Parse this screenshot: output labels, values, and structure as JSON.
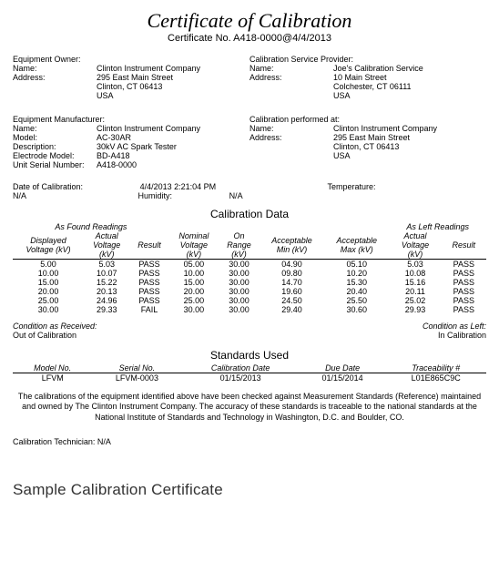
{
  "title": "Certificate of Calibration",
  "cert_label": "Certificate No.",
  "cert_no": "A418-0000@4/4/2013",
  "owner": {
    "heading": "Equipment Owner:",
    "name_label": "Name:",
    "name": "Clinton Instrument Company",
    "addr_label": "Address:",
    "addr1": "295 East Main Street",
    "addr2": "Clinton, CT 06413",
    "addr3": "USA"
  },
  "provider": {
    "heading": "Calibration Service Provider:",
    "name_label": "Name:",
    "name": "Joe's Calibration Service",
    "addr_label": "Address:",
    "addr1": "10 Main Street",
    "addr2": "Colchester, CT 06111",
    "addr3": "USA"
  },
  "manufacturer": {
    "heading": "Equipment Manufacturer:",
    "name_label": "Name:",
    "name": "Clinton Instrument Company",
    "model_label": "Model:",
    "model": "AC-30AR",
    "desc_label": "Description:",
    "desc": "30kV AC Spark Tester",
    "elec_label": "Electrode Model:",
    "elec": "BD-A418",
    "serial_label": "Unit Serial Number:",
    "serial": "A418-0000"
  },
  "performed": {
    "heading": "Calibration performed at:",
    "name_label": "Name:",
    "name": "Clinton Instrument Company",
    "addr_label": "Address:",
    "addr1": "295 East Main Street",
    "addr2": "Clinton, CT 06413",
    "addr3": "USA"
  },
  "env": {
    "date_label": "Date of Calibration:",
    "date": "4/4/2013 2:21:04 PM",
    "temp_label": "Temperature:",
    "temp": "N/A",
    "humid_label": "Humidity:",
    "humid": "N/A"
  },
  "caldata": {
    "heading": "Calibration Data",
    "group_found": "As Found Readings",
    "group_left_label": "As Left Readings",
    "cols": {
      "c0a": "Displayed",
      "c0b": "Voltage (kV)",
      "c1a": "Actual",
      "c1b": "Voltage",
      "c1c": "(kV)",
      "c2": "Result",
      "c3a": "Nominal",
      "c3b": "Voltage",
      "c3c": "(kV)",
      "c4a": "On",
      "c4b": "Range",
      "c4c": "(kV)",
      "c5a": "Acceptable",
      "c5b": "Min (kV)",
      "c6a": "Acceptable",
      "c6b": "Max (kV)",
      "c7a": "Actual",
      "c7b": "Voltage",
      "c7c": "(kV)",
      "c8": "Result"
    },
    "rows": [
      {
        "d": "5.00",
        "af": "5.03",
        "rf": "PASS",
        "nv": "05.00",
        "or": "30.00",
        "mn": "04.90",
        "mx": "05.10",
        "al": "5.03",
        "rl": "PASS"
      },
      {
        "d": "10.00",
        "af": "10.07",
        "rf": "PASS",
        "nv": "10.00",
        "or": "30.00",
        "mn": "09.80",
        "mx": "10.20",
        "al": "10.08",
        "rl": "PASS"
      },
      {
        "d": "15.00",
        "af": "15.22",
        "rf": "PASS",
        "nv": "15.00",
        "or": "30.00",
        "mn": "14.70",
        "mx": "15.30",
        "al": "15.16",
        "rl": "PASS"
      },
      {
        "d": "20.00",
        "af": "20.13",
        "rf": "PASS",
        "nv": "20.00",
        "or": "30.00",
        "mn": "19.60",
        "mx": "20.40",
        "al": "20.11",
        "rl": "PASS"
      },
      {
        "d": "25.00",
        "af": "24.96",
        "rf": "PASS",
        "nv": "25.00",
        "or": "30.00",
        "mn": "24.50",
        "mx": "25.50",
        "al": "25.02",
        "rl": "PASS"
      },
      {
        "d": "30.00",
        "af": "29.33",
        "rf": "FAIL",
        "nv": "30.00",
        "or": "30.00",
        "mn": "29.40",
        "mx": "30.60",
        "al": "29.93",
        "rl": "PASS"
      }
    ]
  },
  "cond": {
    "recv_label": "Condition as Received:",
    "recv": "Out of Calibration",
    "left_label": "Condition as Left:",
    "left": "In Calibration"
  },
  "standards": {
    "heading": "Standards Used",
    "cols": {
      "model": "Model No.",
      "serial": "Serial No.",
      "caldate": "Calibration Date",
      "due": "Due Date",
      "trace": "Traceability #"
    },
    "rows": [
      {
        "model": "LFVM",
        "serial": "LFVM-0003",
        "caldate": "01/15/2013",
        "due": "01/15/2014",
        "trace": "L01E865C9C"
      }
    ]
  },
  "disclaimer": "The calibrations of the equipment identified above have been checked against Measurement Standards (Reference) maintained and owned by The Clinton Instrument Company. The accuracy of these standards is traceable to the national standards at the National Institute of Standards and Technology in Washington, D.C. and Boulder, CO.",
  "tech_label": "Calibration Technician:",
  "tech": "N/A",
  "caption": "Sample Calibration Certificate"
}
